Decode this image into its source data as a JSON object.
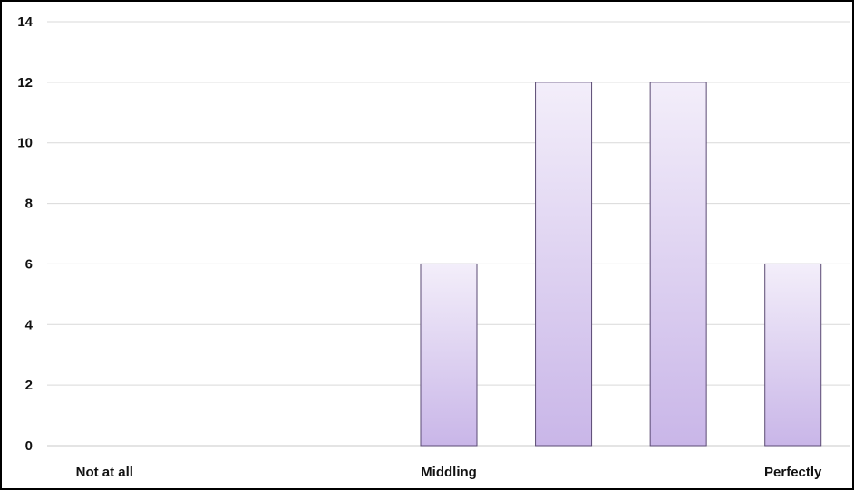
{
  "chart_data": {
    "type": "bar",
    "categories": [
      "Not at all",
      "",
      "",
      "Middling",
      "",
      "",
      "Perfectly"
    ],
    "values": [
      0,
      0,
      0,
      6,
      12,
      12,
      6
    ],
    "title": "",
    "xlabel": "",
    "ylabel": "",
    "ylim": [
      0,
      14
    ],
    "yticks": [
      0,
      2,
      4,
      6,
      8,
      10,
      12,
      14
    ],
    "grid": true,
    "legend": "none",
    "colors": {
      "bar_fill_top": "#f3eefa",
      "bar_fill_bottom": "#c9b6e8",
      "bar_stroke": "#5a4a73",
      "grid": "#d9d9d9"
    }
  }
}
